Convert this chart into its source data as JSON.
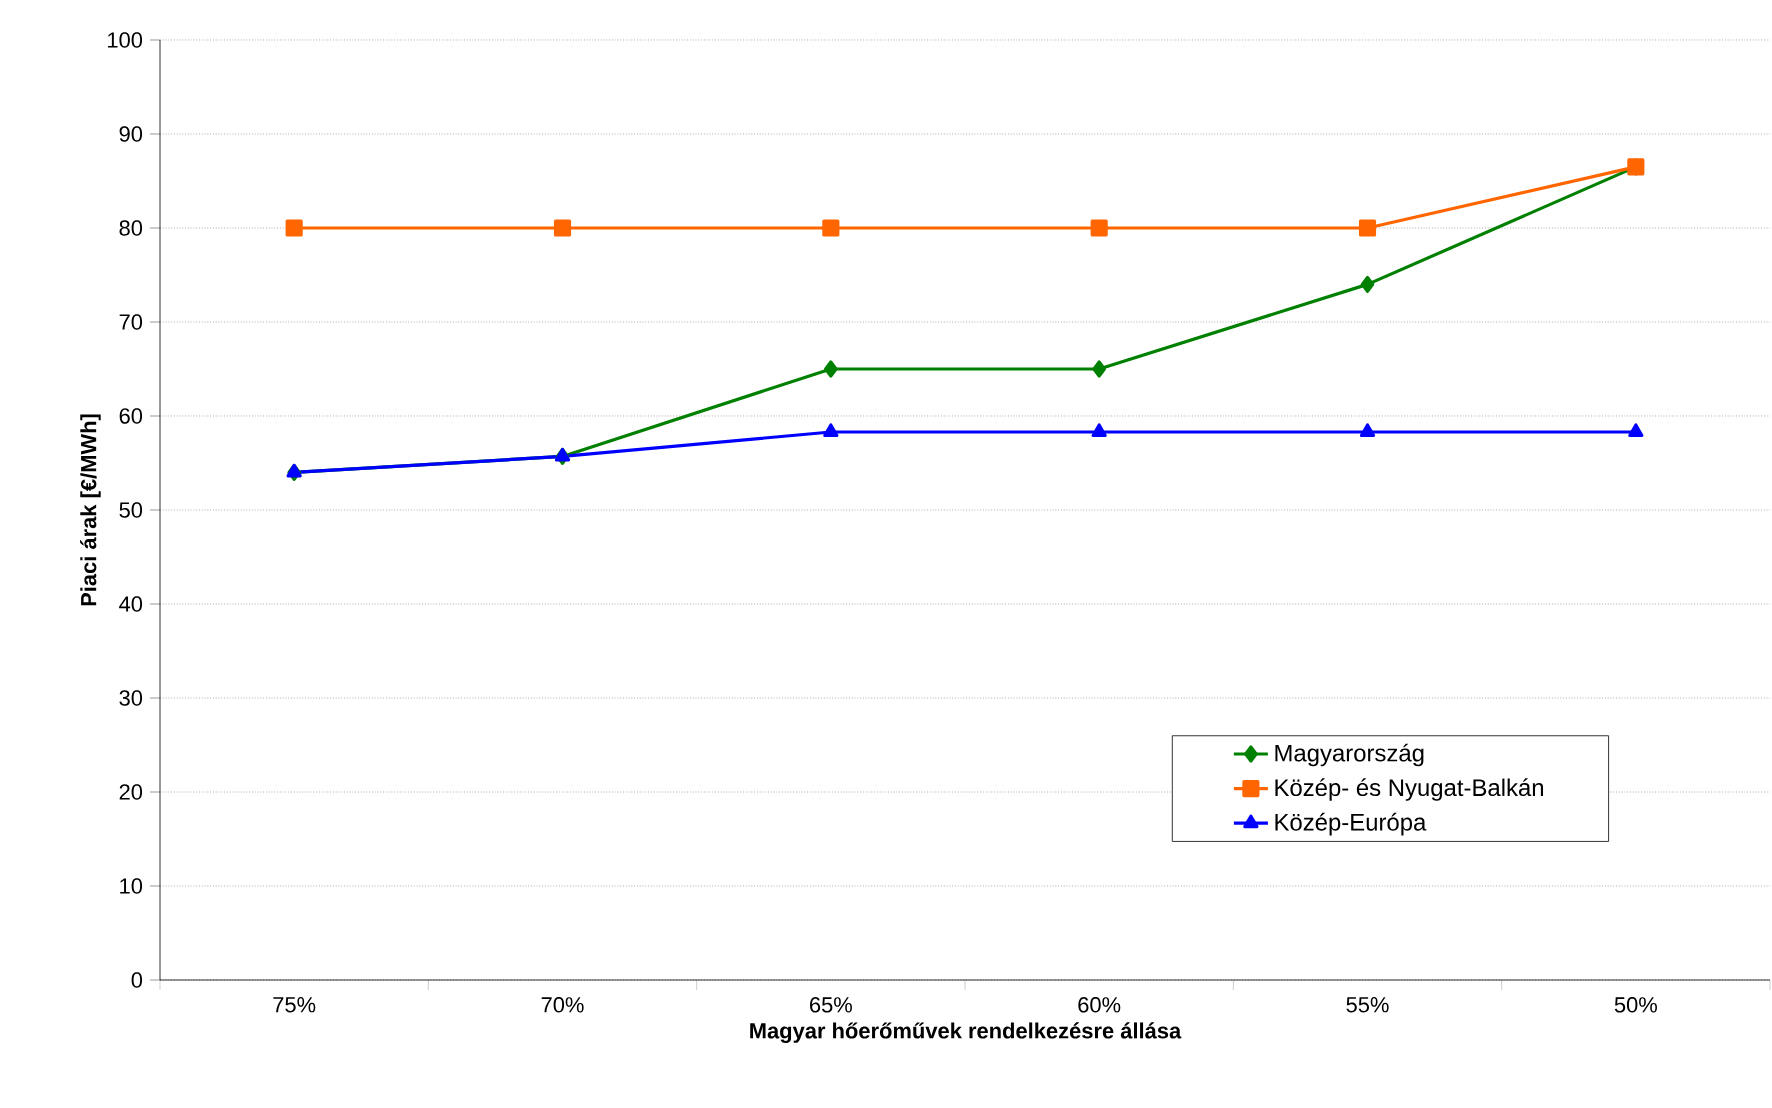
{
  "chart_data": {
    "type": "line",
    "xlabel": "Magyar hőerőművek rendelkezésre állása",
    "ylabel": "Piaci árak [€/MWh]",
    "categories": [
      "75%",
      "70%",
      "65%",
      "60%",
      "55%",
      "50%"
    ],
    "series": [
      {
        "name": "Magyarország",
        "color": "#008000",
        "marker": "diamond",
        "values": [
          54,
          55.7,
          65,
          65,
          74,
          86.5
        ]
      },
      {
        "name": "Közép- és Nyugat-Balkán",
        "color": "#ff6600",
        "marker": "square",
        "values": [
          80,
          80,
          80,
          80,
          80,
          86.5
        ]
      },
      {
        "name": "Közép-Európa",
        "color": "#0000ff",
        "marker": "triangle",
        "values": [
          54,
          55.7,
          58.3,
          58.3,
          58.3,
          58.3
        ]
      }
    ],
    "ylim": [
      0,
      100
    ],
    "yticks": [
      0,
      10,
      20,
      30,
      40,
      50,
      60,
      70,
      80,
      90,
      100
    ],
    "grid": "y",
    "legend": "bottom right",
    "line_style": "solid"
  }
}
